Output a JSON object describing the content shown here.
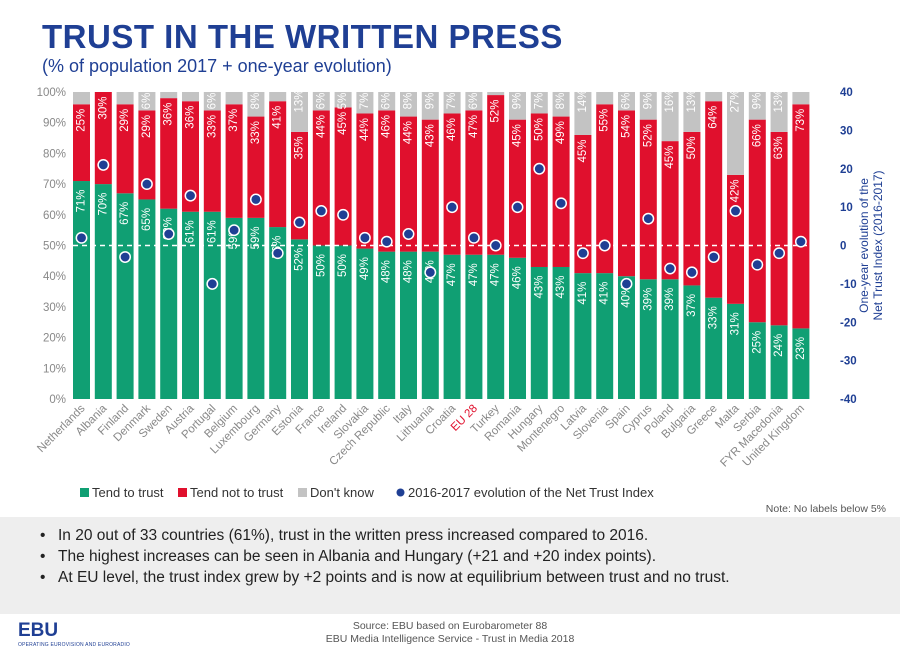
{
  "header": {
    "title": "TRUST IN THE WRITTEN PRESS",
    "subtitle": "(% of population 2017 + one-year evolution)"
  },
  "chart_data": {
    "type": "bar",
    "stacked": true,
    "categories": [
      "Netherlands",
      "Albania",
      "Finland",
      "Denmark",
      "Sweden",
      "Austria",
      "Portugal",
      "Belgium",
      "Luxembourg",
      "Germany",
      "Estonia",
      "France",
      "Ireland",
      "Slovakia",
      "Czech Republic",
      "Italy",
      "Lithuania",
      "Croatia",
      "EU 28",
      "Turkey",
      "Romania",
      "Hungary",
      "Montenegro",
      "Latvia",
      "Slovenia",
      "Spain",
      "Cyprus",
      "Poland",
      "Bulgaria",
      "Greece",
      "Malta",
      "Serbia",
      "FYR Macedonia",
      "United Kingdom"
    ],
    "highlight_category": "EU 28",
    "series": [
      {
        "name": "Tend to trust",
        "color": "#109f73",
        "values": [
          71,
          70,
          67,
          65,
          62,
          61,
          61,
          59,
          59,
          56,
          52,
          50,
          50,
          49,
          48,
          48,
          48,
          47,
          47,
          47,
          46,
          43,
          43,
          41,
          41,
          40,
          39,
          39,
          37,
          33,
          31,
          25,
          24,
          23
        ]
      },
      {
        "name": "Tend not to trust",
        "color": "#e0102d",
        "values": [
          25,
          30,
          29,
          29,
          36,
          36,
          33,
          37,
          33,
          41,
          35,
          44,
          45,
          44,
          46,
          44,
          43,
          46,
          47,
          52,
          45,
          50,
          49,
          45,
          55,
          54,
          52,
          45,
          50,
          64,
          42,
          66,
          63,
          73
        ]
      },
      {
        "name": "Don't know",
        "color": "#c3c3c3",
        "values": [
          4,
          0,
          4,
          6,
          2,
          3,
          6,
          4,
          8,
          3,
          13,
          6,
          5,
          7,
          6,
          8,
          9,
          7,
          6,
          1,
          9,
          7,
          8,
          14,
          4,
          6,
          9,
          16,
          13,
          3,
          27,
          9,
          13,
          4
        ]
      }
    ],
    "bar_labels": {
      "Tend to trust": [
        "71%",
        "70%",
        "67%",
        "65%",
        "62%",
        "61%",
        "61%",
        "59%",
        "59%",
        "56%",
        "52%",
        "50%",
        "50%",
        "49%",
        "48%",
        "48%",
        "48%",
        "47%",
        "47%",
        "47%",
        "46%",
        "43%",
        "43%",
        "41%",
        "41%",
        "40%",
        "39%",
        "39%",
        "37%",
        "33%",
        "31%",
        "25%",
        "24%",
        "23%"
      ],
      "Tend not to trust": [
        "25%",
        "30%",
        "29%",
        "29%",
        "36%",
        "36%",
        "33%",
        "37%",
        "33%",
        "41%",
        "35%",
        "44%",
        "45%",
        "44%",
        "46%",
        "44%",
        "43%",
        "46%",
        "47%",
        "52%",
        "45%",
        "50%",
        "49%",
        "45%",
        "55%",
        "54%",
        "52%",
        "45%",
        "50%",
        "64%",
        "42%",
        "66%",
        "63%",
        "73%"
      ],
      "Don't know": [
        "",
        "",
        "",
        "6%",
        "",
        "",
        "6%",
        "",
        "8%",
        "",
        "13%",
        "6%",
        "5%",
        "7%",
        "6%",
        "8%",
        "9%",
        "7%",
        "6%",
        "",
        "9%",
        "7%",
        "8%",
        "14%",
        "",
        "6%",
        "9%",
        "16%",
        "13%",
        "",
        "27%",
        "9%",
        "13%",
        ""
      ]
    },
    "evolution": {
      "name": "2016-2017 evolution of the Net Trust Index",
      "color": "#1f3f94",
      "values": [
        2,
        21,
        -3,
        16,
        3,
        13,
        -10,
        4,
        12,
        -2,
        6,
        9,
        8,
        2,
        1,
        3,
        -7,
        10,
        2,
        0,
        10,
        20,
        11,
        -2,
        0,
        -10,
        7,
        -6,
        -7,
        -3,
        9,
        -5,
        -2,
        1
      ]
    },
    "y_left": {
      "ticks": [
        "0%",
        "10%",
        "20%",
        "30%",
        "40%",
        "50%",
        "60%",
        "70%",
        "80%",
        "90%",
        "100%"
      ],
      "ylim": [
        0,
        100
      ]
    },
    "y_right": {
      "label": "One-year evolution of the Net Trust Index (2016-2017)",
      "ticks": [
        "-40",
        "-30",
        "-20",
        "-10",
        "0",
        "10",
        "20",
        "30",
        "40"
      ],
      "ylim": [
        -40,
        40
      ]
    },
    "reference_line": 50,
    "legend_placement": "bottom",
    "note": "Note: No labels below 5%"
  },
  "notes": [
    "In 20 out of 33 countries (61%), trust in the written press increased compared to 2016.",
    "The highest increases can be seen in Albania and Hungary (+21 and +20 index points).",
    "At EU level, the trust index grew by +2 points and is now at equilibrium between trust and no trust."
  ],
  "footer": {
    "logo": "EBU",
    "logo_sub": "OPERATING EUROVISION AND EURORADIO",
    "source_line1": "Source: EBU based on Eurobarometer 88",
    "source_line2": "EBU Media Intelligence Service - Trust in Media 2018"
  },
  "colors": {
    "title": "#1f3f94",
    "highlight_label": "#e0102d",
    "axis_text": "#888888"
  }
}
